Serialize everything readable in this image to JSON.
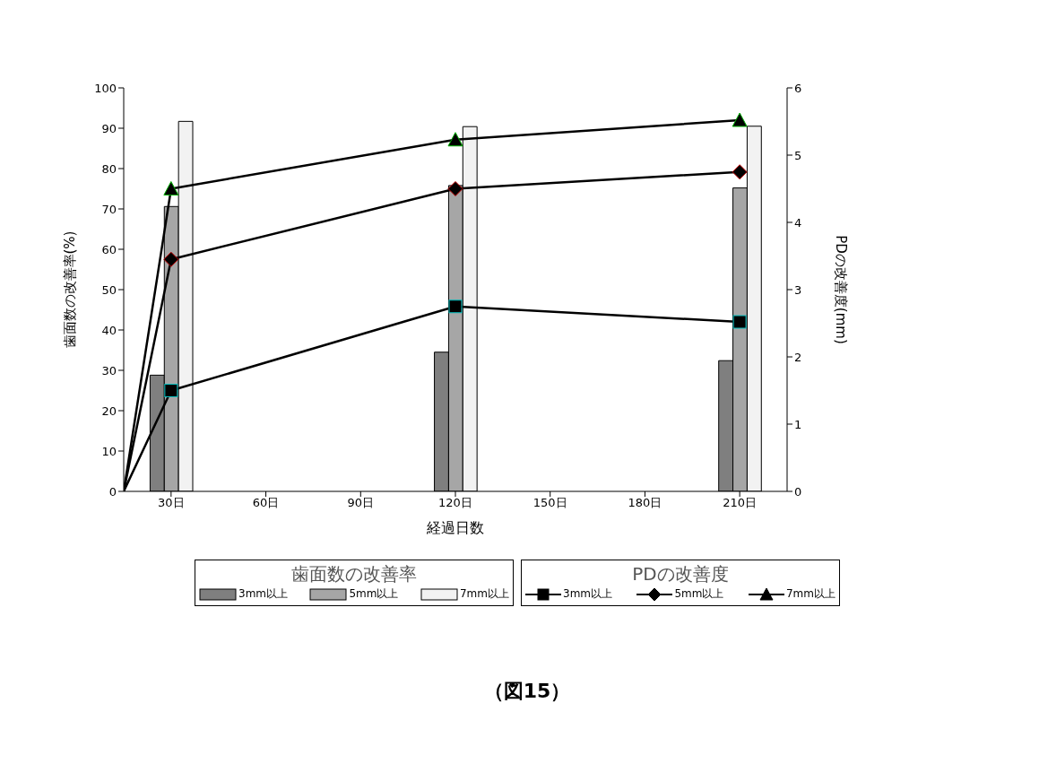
{
  "chart_data": {
    "type": "bar",
    "xlabel": "経過日数",
    "ylabel": "歯面数の改善率(%)",
    "y2label": "PDの改善度(mm)",
    "legend_title": "歯面数の改善率",
    "annotations": [
      "PDの改善度",
      "（図15）"
    ],
    "x": [
      30,
      120,
      210
    ],
    "xlim": [
      15,
      225
    ],
    "xticks": [
      {
        "value": 30,
        "label": "30日"
      },
      {
        "value": 60,
        "label": "60日"
      },
      {
        "value": 90,
        "label": "90日"
      },
      {
        "value": 120,
        "label": "120日"
      },
      {
        "value": 150,
        "label": "150日"
      },
      {
        "value": 180,
        "label": "180日"
      },
      {
        "value": 210,
        "label": "210日"
      }
    ],
    "ylim": [
      0,
      100
    ],
    "yticks": [
      0,
      10,
      20,
      30,
      40,
      50,
      60,
      70,
      80,
      90,
      100
    ],
    "y2lim": [
      0,
      6
    ],
    "y2ticks": [
      0,
      1,
      2,
      3,
      4,
      5,
      6
    ],
    "legend": "bottom",
    "grid": false,
    "series": [
      {
        "name": "3mm以上",
        "color": "#7f7f7f",
        "values": [
          28.8,
          34.5,
          32.4
        ]
      },
      {
        "name": "5mm以上",
        "color": "#a6a6a6",
        "values": [
          70.6,
          75.8,
          75.2
        ]
      },
      {
        "name": "7mm以上",
        "color": "#f2f2f2",
        "values": [
          91.7,
          90.4,
          90.5
        ]
      },
      {
        "name": "3mm以上",
        "type": "line",
        "axis": "y2",
        "marker": "square",
        "color": "#000000",
        "x": [
          15,
          30,
          120,
          210
        ],
        "values": [
          0,
          1.5,
          2.75,
          2.52
        ]
      },
      {
        "name": "5mm以上",
        "type": "line",
        "axis": "y2",
        "marker": "diamond",
        "color": "#000000",
        "x": [
          15,
          30,
          120,
          210
        ],
        "values": [
          0,
          3.45,
          4.5,
          4.75
        ]
      },
      {
        "name": "7mm以上",
        "type": "line",
        "axis": "y2",
        "marker": "triangle",
        "color": "#000000",
        "x": [
          15,
          30,
          120,
          210
        ],
        "values": [
          0,
          4.5,
          5.23,
          5.52
        ]
      }
    ]
  }
}
